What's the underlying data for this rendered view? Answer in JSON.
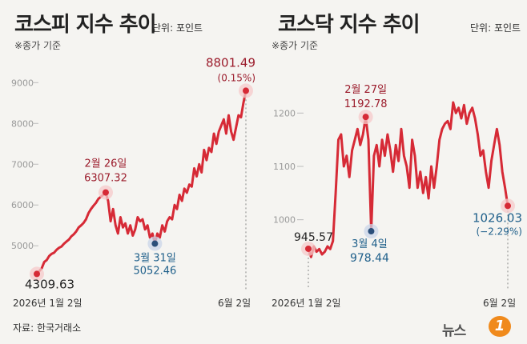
{
  "chart_data": [
    {
      "type": "line",
      "title": "코스피 지수 추이",
      "unit": "단위: 포인트",
      "note": "※종가 기준",
      "ylim": [
        4200,
        9300
      ],
      "yticks": [
        5000,
        6000,
        7000,
        8000,
        9000
      ],
      "ytick_labels": [
        "5000",
        "6000",
        "7000",
        "8000",
        "9000"
      ],
      "x_start_label": "2026년 1월 2일",
      "x_end_label": "6월 2일",
      "series": [
        {
          "values": [
            4309.63,
            4380,
            4450,
            4600,
            4650,
            4750,
            4800,
            4830,
            4900,
            4950,
            4980,
            5050,
            5100,
            5150,
            5230,
            5280,
            5350,
            5450,
            5500,
            5560,
            5650,
            5800,
            5900,
            5980,
            6050,
            6150,
            6200,
            6250,
            6307.32,
            6100,
            5600,
            5900,
            5500,
            5300,
            5700,
            5450,
            5550,
            5300,
            5500,
            5250,
            5400,
            5700,
            5600,
            5650,
            5400,
            5500,
            5200,
            5300,
            5052.46,
            5300,
            5200,
            5500,
            5350,
            5600,
            5700,
            5650,
            6000,
            5900,
            6250,
            6100,
            6400,
            6300,
            6500,
            6450,
            6900,
            6700,
            7000,
            6800,
            7350,
            7100,
            7400,
            7300,
            7750,
            7500,
            7800,
            7950,
            8100,
            7750,
            8200,
            7800,
            7600,
            7900,
            8200,
            8150,
            8500,
            8801.49
          ],
          "color": "#d62a36"
        }
      ],
      "annotations": [
        {
          "key": "start",
          "label": "2026년 1월 2일",
          "value": "4309.63",
          "color": "#222"
        },
        {
          "key": "peak",
          "label": "2월 26일",
          "value": "6307.32",
          "color": "#9b1b2b"
        },
        {
          "key": "low",
          "label": "3월 31일",
          "value": "5052.46",
          "color": "#1e5f8a"
        },
        {
          "key": "end",
          "label": "6월 2일",
          "value": "8801.49",
          "change": "(0.15%)",
          "color": "#9b1b2b"
        }
      ]
    },
    {
      "type": "line",
      "title": "코스닥 지수 추이",
      "unit": "단위: 포인트",
      "note": "※종가 기준",
      "ylim": [
        890,
        1280
      ],
      "yticks": [
        1000,
        1100,
        1200
      ],
      "ytick_labels": [
        "1000",
        "1100",
        "1200"
      ],
      "x_start_label": "2026년 1월 2일",
      "x_end_label": "6월 2일",
      "series": [
        {
          "values": [
            945.57,
            930,
            950,
            940,
            945,
            935,
            940,
            950,
            945,
            960,
            1050,
            1150,
            1160,
            1100,
            1120,
            1080,
            1130,
            1150,
            1170,
            1140,
            1160,
            1192.78,
            1150,
            978.44,
            1120,
            1140,
            1100,
            1150,
            1120,
            1160,
            1130,
            1090,
            1140,
            1110,
            1170,
            1120,
            1100,
            1060,
            1150,
            1120,
            1060,
            1090,
            1050,
            1080,
            1040,
            1100,
            1060,
            1100,
            1150,
            1170,
            1180,
            1185,
            1170,
            1220,
            1200,
            1210,
            1190,
            1215,
            1180,
            1200,
            1210,
            1190,
            1160,
            1120,
            1130,
            1090,
            1060,
            1110,
            1140,
            1170,
            1140,
            1090,
            1060,
            1026.03
          ],
          "color": "#d62a36"
        }
      ],
      "annotations": [
        {
          "key": "start",
          "label": "",
          "value": "945.57",
          "color": "#222"
        },
        {
          "key": "peak",
          "label": "2월 27일",
          "value": "1192.78",
          "color": "#9b1b2b"
        },
        {
          "key": "low",
          "label": "3월 4일",
          "value": "978.44",
          "color": "#1e5f8a"
        },
        {
          "key": "end",
          "label": "",
          "value": "1026.03",
          "change": "(−2.29%)",
          "color": "#1e5f8a"
        }
      ]
    }
  ],
  "footer": {
    "source": "자료: 한국거래소",
    "brand": "뉴스",
    "brand_mark": "1"
  }
}
